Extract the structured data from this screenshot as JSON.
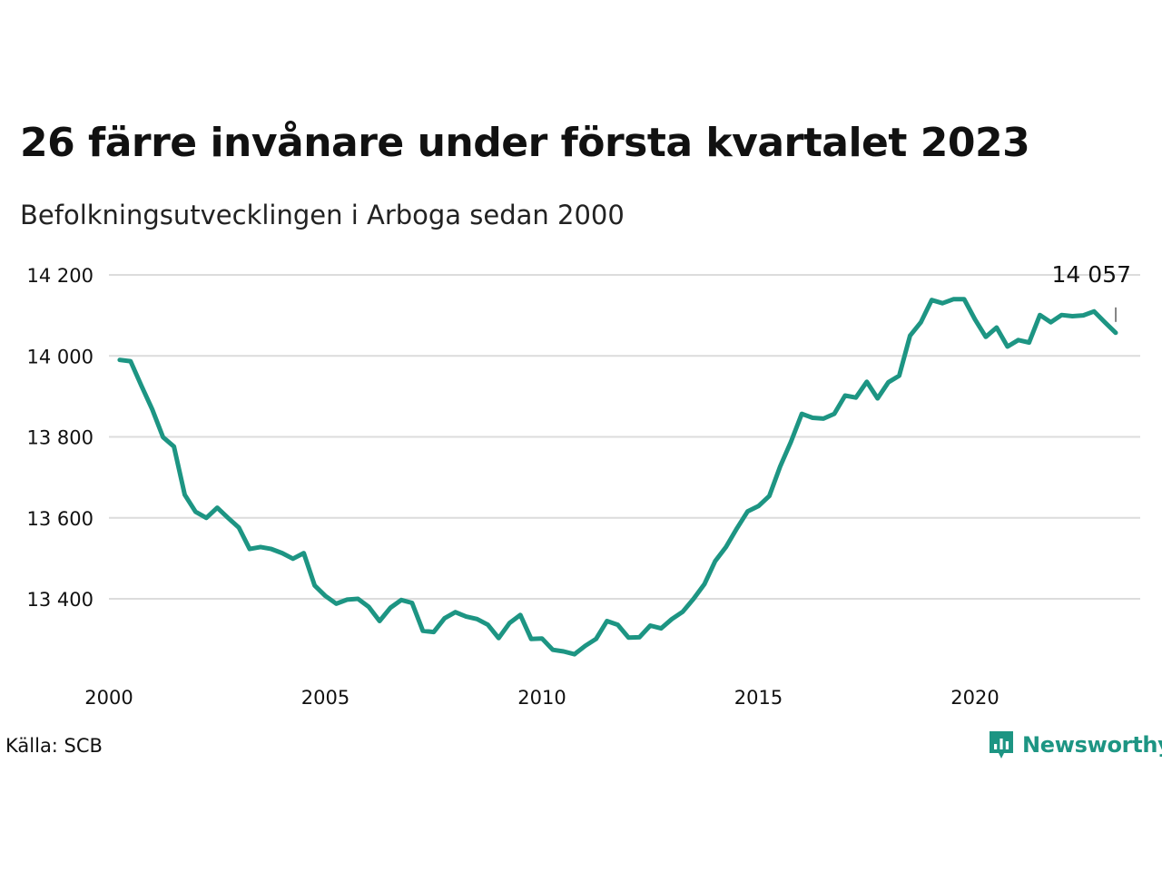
{
  "title": "26 färre invånare under första kvartalet 2023",
  "subtitle": "Befolkningsutvecklingen i Arboga sedan 2000",
  "source": "Källa: SCB",
  "brand": {
    "name": "Newsworthy",
    "icon": "newsworthy-logo-icon",
    "color": "#1d9583"
  },
  "chart_data": {
    "type": "line",
    "line_color": "#1d9583",
    "grid": true,
    "ylim": [
      13220,
      14200
    ],
    "xlim": [
      2000,
      2023.9
    ],
    "yticks": [
      {
        "value": 13400,
        "label": "13 400"
      },
      {
        "value": 13600,
        "label": "13 600"
      },
      {
        "value": 13800,
        "label": "13 800"
      },
      {
        "value": 14000,
        "label": "14 000"
      },
      {
        "value": 14200,
        "label": "14 200"
      }
    ],
    "xticks": [
      {
        "value": 2000,
        "label": "2000"
      },
      {
        "value": 2005,
        "label": "2005"
      },
      {
        "value": 2010,
        "label": "2010"
      },
      {
        "value": 2015,
        "label": "2015"
      },
      {
        "value": 2020,
        "label": "2020"
      }
    ],
    "annotation": {
      "label": "14 057",
      "value": 14057
    },
    "series": [
      {
        "start_year": 2000,
        "start_quarter": 1,
        "values": [
          13990,
          13987,
          13926,
          13868,
          13799,
          13776,
          13657,
          13615,
          13600,
          13625,
          13600,
          13576,
          13523,
          13528,
          13523,
          13513,
          13499,
          13513,
          13433,
          13407,
          13388,
          13398,
          13400,
          13380,
          13345,
          13378,
          13397,
          13390,
          13321,
          13318,
          13352,
          13367,
          13356,
          13350,
          13336,
          13303,
          13340,
          13360,
          13301,
          13302,
          13274,
          13270,
          13263,
          13284,
          13301,
          13345,
          13336,
          13304,
          13305,
          13334,
          13327,
          13350,
          13368,
          13400,
          13436,
          13493,
          13528,
          13574,
          13616,
          13629,
          13654,
          13727,
          13788,
          13857,
          13847,
          13845,
          13857,
          13902,
          13897,
          13936,
          13895,
          13935,
          13951,
          14050,
          14083,
          14138,
          14130,
          14140,
          14140,
          14090,
          14047,
          14070,
          14023,
          14039,
          14033,
          14101,
          14083,
          14101,
          14098,
          14100,
          14110,
          14083,
          14057
        ]
      }
    ]
  }
}
